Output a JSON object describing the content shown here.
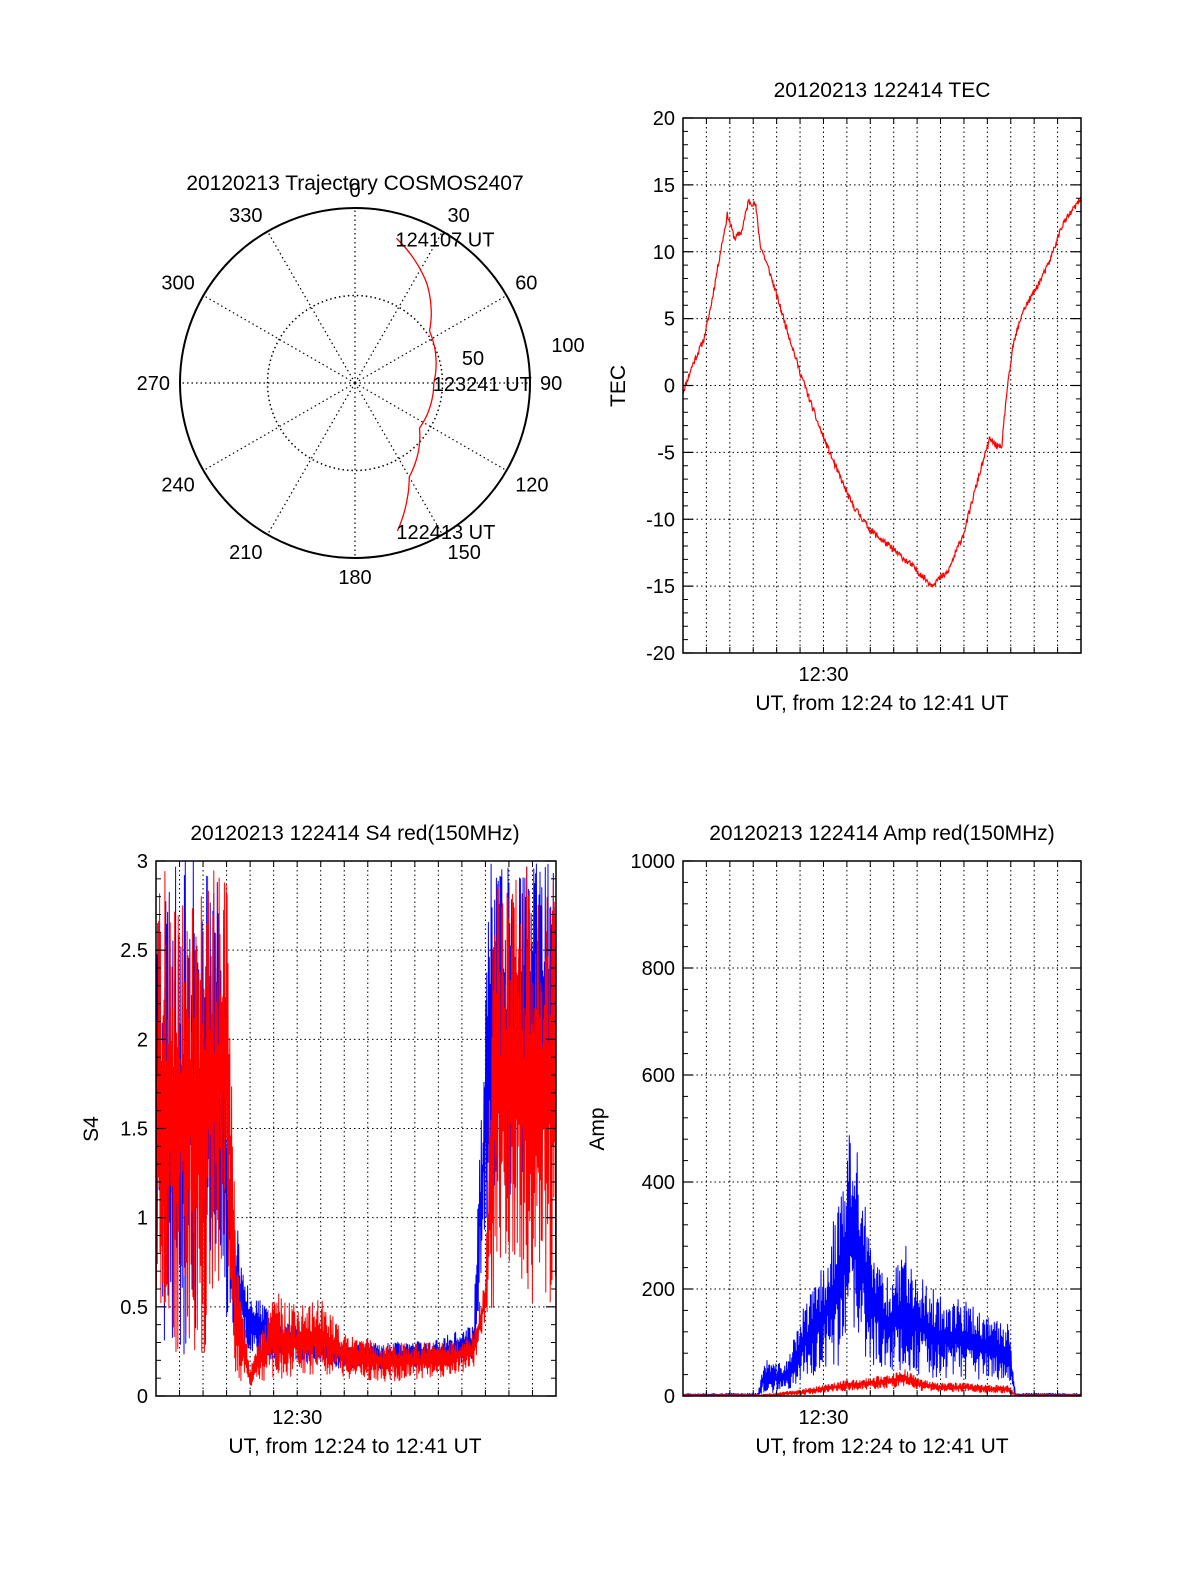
{
  "colors": {
    "red": "#ff0000",
    "blue": "#0000ff",
    "axis": "#000000"
  },
  "chart_data": [
    {
      "id": "trajectory",
      "type": "polar",
      "title": "20120213 Trajectory COSMOS2407",
      "angle_labels": [
        "0",
        "30",
        "60",
        "90",
        "120",
        "150",
        "180",
        "210",
        "240",
        "270",
        "300",
        "330"
      ],
      "radius_labels": [
        "50",
        "100"
      ],
      "rlim": [
        0,
        100
      ],
      "grid": true,
      "annotations": [
        {
          "text": "124107 UT",
          "azimuth": 16,
          "zenith": 86
        },
        {
          "text": "123241 UT",
          "azimuth": 90,
          "zenith": 45
        },
        {
          "text": "122413 UT",
          "azimuth": 164,
          "zenith": 88
        }
      ],
      "series": [
        {
          "color": "red",
          "points": [
            [
              164,
              88
            ],
            [
              150,
              62
            ],
            [
              125,
              45
            ],
            [
              90,
              45
            ],
            [
              55,
              52
            ],
            [
              36,
              70
            ],
            [
              16,
              86
            ]
          ]
        }
      ]
    },
    {
      "id": "tec",
      "type": "line",
      "title": "20120213 122414 TEC",
      "xlabel": "UT, from 12:24 to 12:41 UT",
      "ylabel": "TEC",
      "xlim_minutes": [
        0,
        17
      ],
      "x_tick_labels": [
        {
          "minute": 6,
          "label": "12:30"
        }
      ],
      "ylim": [
        -20,
        20
      ],
      "y_ticks": [
        "-20",
        "-15",
        "-10",
        "-5",
        "0",
        "5",
        "10",
        "15",
        "20"
      ],
      "grid": true,
      "series": [
        {
          "color": "red",
          "points": [
            [
              0,
              -0.5
            ],
            [
              0.4,
              1.5
            ],
            [
              0.9,
              3.5
            ],
            [
              1.2,
              6
            ],
            [
              1.6,
              10
            ],
            [
              1.9,
              12.8
            ],
            [
              2.2,
              11
            ],
            [
              2.5,
              11.5
            ],
            [
              2.8,
              13.8
            ],
            [
              3.1,
              13.5
            ],
            [
              3.3,
              10.5
            ],
            [
              3.7,
              8.5
            ],
            [
              4.3,
              5
            ],
            [
              5,
              1
            ],
            [
              5.8,
              -3
            ],
            [
              6.5,
              -6
            ],
            [
              7.2,
              -8.8
            ],
            [
              8,
              -10.8
            ],
            [
              9,
              -12.3
            ],
            [
              9.8,
              -13.5
            ],
            [
              10.6,
              -14.9
            ],
            [
              11.3,
              -14
            ],
            [
              12,
              -11
            ],
            [
              12.6,
              -7
            ],
            [
              13.1,
              -4
            ],
            [
              13.4,
              -4.5
            ],
            [
              13.6,
              -4.8
            ],
            [
              13.8,
              -1
            ],
            [
              14.1,
              3
            ],
            [
              14.5,
              5.5
            ],
            [
              15,
              7
            ],
            [
              15.6,
              9
            ],
            [
              16.2,
              12
            ],
            [
              17,
              14
            ]
          ]
        }
      ]
    },
    {
      "id": "s4",
      "type": "line",
      "title": "20120213 122414 S4 red(150MHz)",
      "xlabel": "UT, from 12:24 to 12:41 UT",
      "ylabel": "S4",
      "xlim_minutes": [
        0,
        17
      ],
      "x_tick_labels": [
        {
          "minute": 6,
          "label": "12:30"
        }
      ],
      "ylim": [
        0,
        3
      ],
      "y_ticks": [
        "0",
        "0.5",
        "1",
        "1.5",
        "2",
        "2.5",
        "3"
      ],
      "grid": true,
      "series": [
        {
          "color": "blue",
          "envelope": [
            [
              0,
              0.3,
              3
            ],
            [
              1,
              0.2,
              3
            ],
            [
              2,
              0.2,
              3
            ],
            [
              2.8,
              0.5,
              3
            ],
            [
              3.2,
              0.35,
              1.1
            ],
            [
              4,
              0.25,
              0.6
            ],
            [
              5,
              0.2,
              0.45
            ],
            [
              6,
              0.2,
              0.4
            ],
            [
              8,
              0.15,
              0.3
            ],
            [
              10,
              0.15,
              0.3
            ],
            [
              12,
              0.15,
              0.32
            ],
            [
              13.5,
              0.2,
              0.4
            ],
            [
              14.2,
              1.2,
              3
            ],
            [
              15,
              1.1,
              3
            ],
            [
              16,
              1.3,
              3
            ],
            [
              17,
              1.4,
              3
            ]
          ]
        },
        {
          "color": "red",
          "envelope": [
            [
              0,
              0.3,
              3
            ],
            [
              1,
              0.2,
              3
            ],
            [
              2,
              0.2,
              3
            ],
            [
              3,
              0.8,
              3
            ],
            [
              3.4,
              0.05,
              0.8
            ],
            [
              4,
              0.05,
              0.15
            ],
            [
              5,
              0.08,
              0.6
            ],
            [
              6,
              0.1,
              0.5
            ],
            [
              7,
              0.12,
              0.55
            ],
            [
              8,
              0.1,
              0.35
            ],
            [
              10,
              0.08,
              0.3
            ],
            [
              12,
              0.1,
              0.3
            ],
            [
              13.5,
              0.15,
              0.35
            ],
            [
              14,
              0.4,
              0.7
            ],
            [
              14.4,
              0.5,
              3
            ],
            [
              15.5,
              0.5,
              3
            ],
            [
              17,
              0.5,
              3
            ]
          ]
        }
      ]
    },
    {
      "id": "amp",
      "type": "line",
      "title": "20120213 122414 Amp red(150MHz)",
      "xlabel": "UT, from 12:24 to 12:41 UT",
      "ylabel": "Amp",
      "xlim_minutes": [
        0,
        17
      ],
      "x_tick_labels": [
        {
          "minute": 6,
          "label": "12:30"
        }
      ],
      "ylim": [
        0,
        1000
      ],
      "y_ticks": [
        "0",
        "200",
        "400",
        "600",
        "800",
        "1000"
      ],
      "grid": true,
      "series": [
        {
          "color": "blue",
          "envelope": [
            [
              0,
              0,
              5
            ],
            [
              3.2,
              0,
              5
            ],
            [
              3.5,
              5,
              70
            ],
            [
              4,
              5,
              60
            ],
            [
              4.5,
              10,
              70
            ],
            [
              5,
              30,
              150
            ],
            [
              6,
              40,
              250
            ],
            [
              6.8,
              60,
              400
            ],
            [
              7.2,
              100,
              520
            ],
            [
              7.6,
              80,
              420
            ],
            [
              8,
              60,
              280
            ],
            [
              8.8,
              50,
              220
            ],
            [
              9.5,
              40,
              290
            ],
            [
              10.2,
              40,
              220
            ],
            [
              11,
              30,
              190
            ],
            [
              11.8,
              30,
              180
            ],
            [
              12.5,
              30,
              170
            ],
            [
              13.2,
              30,
              140
            ],
            [
              13.9,
              30,
              140
            ],
            [
              14.2,
              0,
              5
            ],
            [
              17,
              0,
              5
            ]
          ]
        },
        {
          "color": "red",
          "envelope": [
            [
              0,
              0,
              3
            ],
            [
              3.3,
              0,
              3
            ],
            [
              4,
              0,
              6
            ],
            [
              5,
              2,
              12
            ],
            [
              6,
              5,
              20
            ],
            [
              7,
              10,
              30
            ],
            [
              8,
              12,
              35
            ],
            [
              8.8,
              15,
              40
            ],
            [
              9.5,
              18,
              50
            ],
            [
              10.2,
              10,
              30
            ],
            [
              11,
              8,
              25
            ],
            [
              12,
              8,
              25
            ],
            [
              13,
              5,
              20
            ],
            [
              13.9,
              5,
              20
            ],
            [
              14.2,
              0,
              3
            ],
            [
              17,
              0,
              3
            ]
          ]
        }
      ]
    }
  ]
}
